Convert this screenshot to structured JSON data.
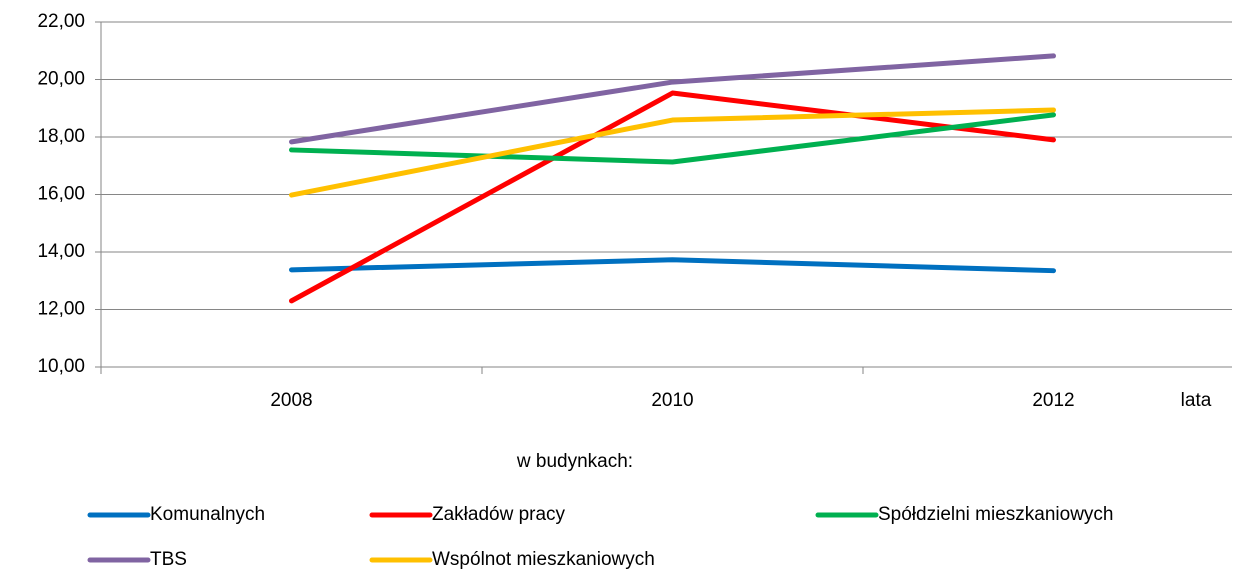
{
  "chart_data": {
    "type": "line",
    "x_label": "lata",
    "legend_title": "w budynkach:",
    "categories": [
      "2008",
      "2010",
      "2012"
    ],
    "series": [
      {
        "name": "Komunalnych",
        "color": "#0070c0",
        "values": [
          13.38,
          13.73,
          13.35
        ]
      },
      {
        "name": "Zakładów pracy",
        "color": "#ff0000",
        "values": [
          12.3,
          19.53,
          17.9
        ]
      },
      {
        "name": "Spółdzielni mieszkaniowych",
        "color": "#00b050",
        "values": [
          17.55,
          17.13,
          18.77
        ]
      },
      {
        "name": "TBS",
        "color": "#8064a2",
        "values": [
          17.83,
          19.91,
          20.82
        ]
      },
      {
        "name": "Wspólnot mieszkaniowych",
        "color": "#ffc000",
        "values": [
          15.98,
          18.59,
          18.94
        ]
      }
    ],
    "ylim": [
      10,
      22
    ],
    "yticks": [
      {
        "value": 10,
        "label": "10,00"
      },
      {
        "value": 12,
        "label": "12,00"
      },
      {
        "value": 14,
        "label": "14,00"
      },
      {
        "value": 16,
        "label": "16,00"
      },
      {
        "value": 18,
        "label": "18,00"
      },
      {
        "value": 20,
        "label": "20,00"
      },
      {
        "value": 22,
        "label": "22,00"
      }
    ],
    "grid": true,
    "legend": "bottom"
  }
}
